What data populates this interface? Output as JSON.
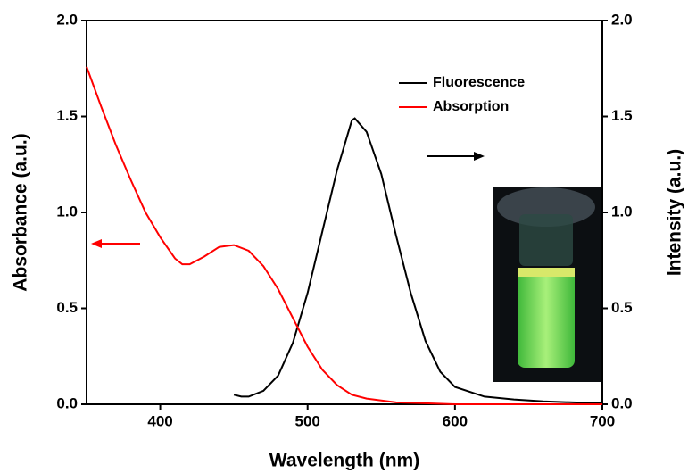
{
  "chart_data": {
    "type": "line",
    "xlabel": "Wavelength (nm)",
    "ylabel": "Absorbance (a.u.)",
    "y2label": "Intensity (a.u.)",
    "xlim": [
      350,
      700
    ],
    "xticks": [
      400,
      500,
      600,
      700
    ],
    "ylim": [
      0,
      2
    ],
    "yticks": [
      {
        "value": 0,
        "label": "0.0"
      },
      0.5,
      {
        "value": 1,
        "label": "1.0"
      },
      1.5,
      {
        "value": 2,
        "label": "2.0"
      }
    ],
    "y2lim": [
      0,
      2
    ],
    "y2ticks": [
      {
        "value": 0,
        "label": "0.0"
      },
      0.5,
      {
        "value": 1,
        "label": "1.0"
      },
      1.5,
      {
        "value": 2,
        "label": "2.0"
      }
    ],
    "legend": "upper right",
    "series": [
      {
        "name": "Fluorescence",
        "color": "#000000",
        "axis": "y2",
        "x": [
          450,
          455,
          460,
          470,
          480,
          490,
          500,
          510,
          520,
          530,
          532,
          540,
          550,
          560,
          570,
          580,
          590,
          600,
          620,
          640,
          660,
          680,
          700
        ],
        "values": [
          0.05,
          0.04,
          0.04,
          0.07,
          0.15,
          0.32,
          0.58,
          0.9,
          1.22,
          1.48,
          1.49,
          1.42,
          1.2,
          0.88,
          0.58,
          0.33,
          0.17,
          0.09,
          0.04,
          0.025,
          0.015,
          0.01,
          0.005
        ]
      },
      {
        "name": "Absorption",
        "color": "#ff0000",
        "x": [
          350,
          360,
          370,
          380,
          390,
          400,
          410,
          415,
          420,
          430,
          440,
          450,
          460,
          470,
          480,
          490,
          500,
          510,
          520,
          530,
          540,
          550,
          560,
          580,
          600,
          700
        ],
        "values": [
          1.76,
          1.55,
          1.35,
          1.17,
          1.0,
          0.87,
          0.76,
          0.73,
          0.73,
          0.77,
          0.82,
          0.83,
          0.8,
          0.72,
          0.6,
          0.45,
          0.3,
          0.18,
          0.1,
          0.05,
          0.03,
          0.02,
          0.01,
          0.005,
          0,
          0
        ]
      }
    ]
  }
}
